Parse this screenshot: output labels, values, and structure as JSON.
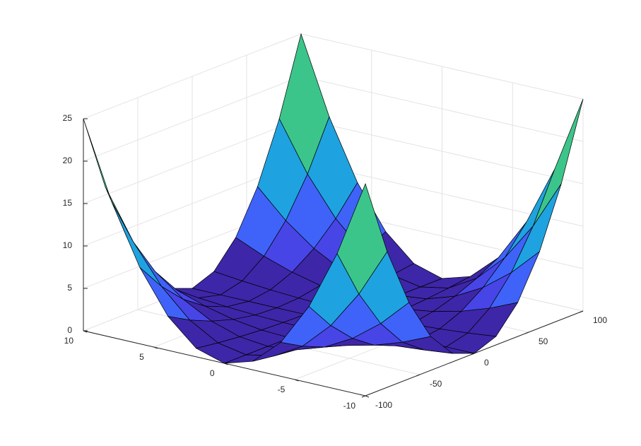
{
  "chart_data": {
    "type": "surface",
    "x": [
      -10,
      -8,
      -6,
      -4,
      -2,
      0,
      2,
      4,
      6,
      8,
      10
    ],
    "y": [
      -100,
      -80,
      -60,
      -40,
      -20,
      0,
      20,
      40,
      60,
      80,
      100
    ],
    "z": [
      [
        25,
        16,
        9,
        4,
        1,
        0,
        1,
        4,
        9,
        16,
        25
      ],
      [
        16,
        10.24,
        5.76,
        2.56,
        0.64,
        0,
        0.64,
        2.56,
        5.76,
        10.24,
        16
      ],
      [
        9,
        5.76,
        3.24,
        1.44,
        0.36,
        0,
        0.36,
        1.44,
        3.24,
        5.76,
        9
      ],
      [
        4,
        2.56,
        1.44,
        0.64,
        0.16,
        0,
        0.16,
        0.64,
        1.44,
        2.56,
        4
      ],
      [
        1,
        0.64,
        0.36,
        0.16,
        0.04,
        0,
        0.04,
        0.16,
        0.36,
        0.64,
        1
      ],
      [
        0,
        0,
        0,
        0,
        0,
        0,
        0,
        0,
        0,
        0,
        0
      ],
      [
        1,
        0.64,
        0.36,
        0.16,
        0.04,
        0,
        0.04,
        0.16,
        0.36,
        0.64,
        1
      ],
      [
        4,
        2.56,
        1.44,
        0.64,
        0.16,
        0,
        0.16,
        0.64,
        1.44,
        2.56,
        4
      ],
      [
        9,
        5.76,
        3.24,
        1.44,
        0.36,
        0,
        0.36,
        1.44,
        3.24,
        5.76,
        9
      ],
      [
        16,
        10.24,
        5.76,
        2.56,
        0.64,
        0,
        0.64,
        2.56,
        5.76,
        10.24,
        16
      ],
      [
        25,
        16,
        9,
        4,
        1,
        0,
        1,
        4,
        9,
        16,
        25
      ]
    ],
    "xlim": [
      -10,
      10
    ],
    "xticks": [
      -10,
      -5,
      0,
      5,
      10
    ],
    "ylim": [
      -100,
      100
    ],
    "yticks": [
      -100,
      -50,
      0,
      50,
      100
    ],
    "zlim": [
      0,
      25
    ],
    "zticks": [
      0,
      5,
      10,
      15,
      20,
      25
    ],
    "grid": true,
    "colormap": [
      "#3e26a8",
      "#4745e6",
      "#3f63f8",
      "#2c84f2",
      "#1fa2e0",
      "#0cbac2",
      "#3cc58a",
      "#62c96a",
      "#efb43a",
      "#f9f20f"
    ]
  }
}
